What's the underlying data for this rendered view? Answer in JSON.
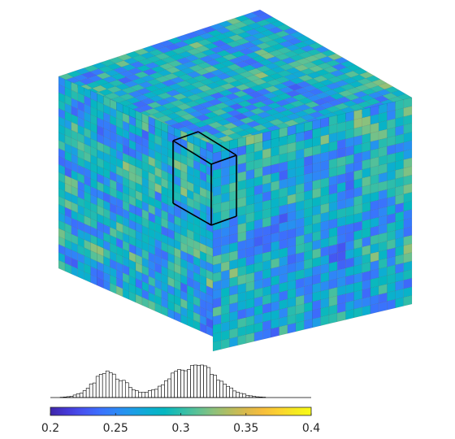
{
  "chart_data": [
    {
      "type": "heatmap",
      "subtype": "3d-voxel-cube",
      "description_visible": "Voxel cube with three visible faces (top, left-front, right-front) colored by value using parula colormap; a black wireframe box marks a highlighted sub-block.",
      "grid_resolution": [
        24,
        24,
        24
      ],
      "value_range": [
        0.2,
        0.4
      ],
      "colormap": "parula",
      "colorbar": {
        "ticks": [
          0.2,
          0.25,
          0.3,
          0.35,
          0.4
        ],
        "tick_labels": [
          "0.2",
          "0.25",
          "0.3",
          "0.35",
          "0.4"
        ],
        "placement": "bottom"
      },
      "highlight_box": {
        "present": true,
        "color": "#000000"
      }
    },
    {
      "type": "bar",
      "subtype": "histogram",
      "description_visible": "Bimodal histogram of the voxel values, drawn with black outline bars above the colorbar.",
      "bin_range": [
        0.2,
        0.4
      ],
      "bin_width": 0.0025,
      "peaks": [
        {
          "center": 0.245,
          "relative_height": 0.75
        },
        {
          "center": 0.31,
          "relative_height": 1.0
        }
      ],
      "bar_color": "#ffffff",
      "edge_color": "#000000"
    }
  ],
  "colors": {
    "parula_stops": [
      "#3e26a8",
      "#4538d6",
      "#4653f0",
      "#3c6ffd",
      "#2e87f7",
      "#1e9ce8",
      "#0dadd3",
      "#05b7c0",
      "#2dbdab",
      "#5bc196",
      "#8cc17c",
      "#b5bd60",
      "#dab94b",
      "#f6bd3c",
      "#fcd130",
      "#f6e921",
      "#f9fb15"
    ],
    "box_stroke": "#000000",
    "grid_line": "#2a2a2a"
  }
}
